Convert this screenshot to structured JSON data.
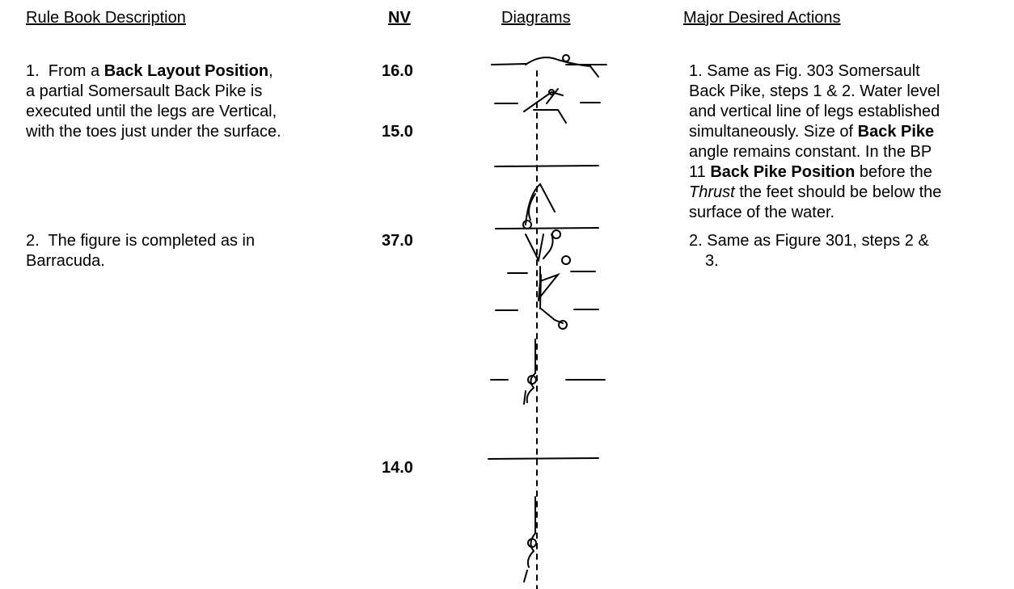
{
  "header": {
    "description": "Rule Book Description",
    "nv": "NV",
    "diagrams": "Diagrams",
    "actions": "Major Desired Actions"
  },
  "rows": [
    {
      "description": [
        [
          {
            "text": "1.  From a "
          },
          {
            "text": "Back Layout Position",
            "bold": true
          },
          {
            "text": ","
          }
        ],
        [
          {
            "text": "a partial Somersault Back Pike is"
          }
        ],
        [
          {
            "text": "executed until the legs are Vertical,"
          }
        ],
        [
          {
            "text": "with the toes just under the surface."
          }
        ]
      ],
      "nv": [
        "16.0",
        "15.0"
      ],
      "actions": [
        [
          {
            "text": "1. Same as Fig. 303 Somersault"
          }
        ],
        [
          {
            "text": "Back Pike, steps 1 & 2. Water level"
          }
        ],
        [
          {
            "text": "and vertical line of legs established"
          }
        ],
        [
          {
            "text": "simultaneously. Size of "
          },
          {
            "text": "Back Pike",
            "bold": true
          }
        ],
        [
          {
            "text": "angle remains constant. In the BP"
          }
        ],
        [
          {
            "text": "11 "
          },
          {
            "text": "Back Pike Position",
            "bold": true
          },
          {
            "text": " before the"
          }
        ],
        [
          {
            "text": "Thrust",
            "italic": true
          },
          {
            "text": " the feet should be below the"
          }
        ],
        [
          {
            "text": "surface of the water."
          }
        ]
      ]
    },
    {
      "description": [
        [
          {
            "text": "2.  The figure is completed as in"
          }
        ],
        [
          {
            "text": "Barracuda."
          }
        ]
      ],
      "nv": [
        "37.0",
        "14.0"
      ],
      "actions": [
        [
          {
            "text": "2. Same as Figure 301, steps 2 &"
          }
        ],
        [
          {
            "text": "3.",
            "indent": true
          }
        ]
      ]
    }
  ]
}
